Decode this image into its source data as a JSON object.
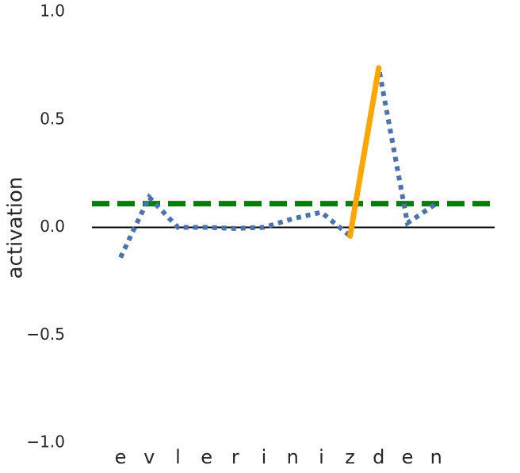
{
  "chart_data": {
    "type": "line",
    "ylabel": "activation",
    "categories": [
      "e",
      "v",
      "l",
      "e",
      "r",
      "i",
      "n",
      "i",
      "z",
      "d",
      "e",
      "n"
    ],
    "series": [
      {
        "color": "#4c72b0",
        "style": "dotted",
        "values": [
          -0.14,
          0.14,
          0.0,
          0.0,
          -0.005,
          0.0,
          0.04,
          0.07,
          -0.04,
          0.74,
          0.02,
          0.11
        ]
      },
      {
        "color": "#ffa500",
        "style": "solid",
        "values": [
          null,
          null,
          null,
          null,
          null,
          null,
          null,
          null,
          -0.04,
          0.74,
          null,
          null
        ]
      }
    ],
    "hlines": [
      {
        "y": 0,
        "color": "#000000",
        "style": "solid"
      },
      {
        "y": 0.11,
        "color": "#008000",
        "style": "dashed"
      }
    ],
    "ylim": [
      -1,
      1
    ],
    "yticks": [
      {
        "value": -1,
        "label": "−1.0"
      },
      {
        "value": -0.5,
        "label": "−0.5"
      },
      {
        "value": 0,
        "label": "0.0"
      },
      0.5,
      {
        "value": 1,
        "label": "1.0"
      }
    ],
    "grid": false
  }
}
